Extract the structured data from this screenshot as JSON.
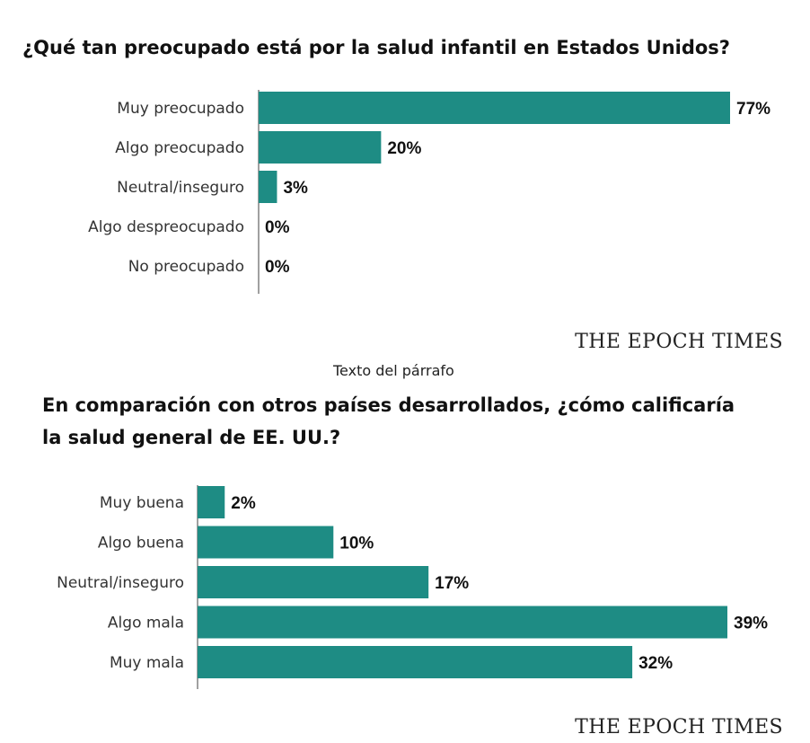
{
  "texts": {
    "caption": "Texto del párrafo",
    "logo": "THE EPOCH TIMES"
  },
  "colors": {
    "bar": "#1e8c84"
  },
  "chart_data": [
    {
      "type": "bar",
      "orientation": "horizontal",
      "title": "¿Qué tan preocupado está por la salud infantil en Estados Unidos?",
      "categories": [
        "Muy preocupado",
        "Algo preocupado",
        "Neutral/inseguro",
        "Algo despreocupado",
        "No preocupado"
      ],
      "values": [
        77,
        20,
        3,
        0,
        0
      ],
      "value_labels": [
        "77%",
        "20%",
        "3%",
        "0%",
        "0%"
      ],
      "unit": "%",
      "xlim": [
        0,
        77
      ]
    },
    {
      "type": "bar",
      "orientation": "horizontal",
      "title": "En comparación con otros países desarrollados, ¿cómo calificaría la salud general de EE. UU.?",
      "categories": [
        "Muy buena",
        "Algo buena",
        "Neutral/inseguro",
        "Algo mala",
        "Muy mala"
      ],
      "values": [
        2,
        10,
        17,
        39,
        32
      ],
      "value_labels": [
        "2%",
        "10%",
        "17%",
        "39%",
        "32%"
      ],
      "unit": "%",
      "xlim": [
        0,
        39
      ]
    }
  ]
}
